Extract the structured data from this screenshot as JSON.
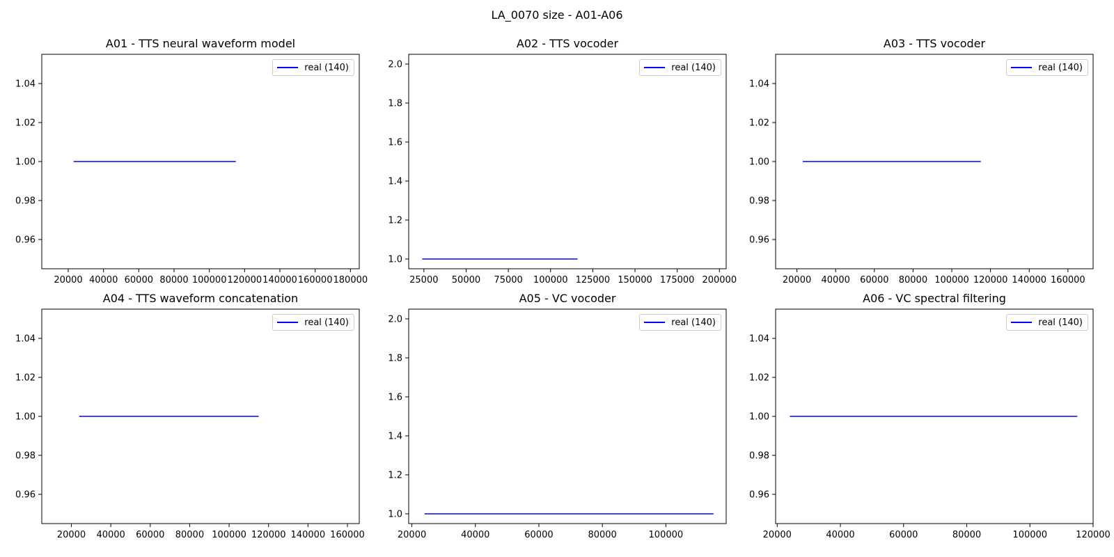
{
  "figure": {
    "title": "LA_0070 size - A01-A06"
  },
  "colors": {
    "series": "#0000ff",
    "axes": "#000000"
  },
  "chart_data": [
    {
      "type": "line",
      "title": "A01 - TTS neural waveform model",
      "xlim": [
        5000,
        185000
      ],
      "ylim": [
        0.945,
        1.055
      ],
      "xticks": [
        20000,
        40000,
        60000,
        80000,
        100000,
        120000,
        140000,
        160000,
        180000
      ],
      "xtick_labels": [
        "20000",
        "40000",
        "60000",
        "80000",
        "100000",
        "120000",
        "140000",
        "160000",
        "180000"
      ],
      "yticks": [
        0.96,
        0.98,
        1.0,
        1.02,
        1.04
      ],
      "ytick_labels": [
        "0.96",
        "0.98",
        "1.00",
        "1.02",
        "1.04"
      ],
      "legend_position": "upper-right",
      "series": [
        {
          "name": "real (140)",
          "x": [
            23000,
            115000
          ],
          "y": [
            1.0,
            1.0
          ]
        }
      ]
    },
    {
      "type": "line",
      "title": "A02 - TTS vocoder",
      "xlim": [
        16000,
        204000
      ],
      "ylim": [
        0.95,
        2.05
      ],
      "xticks": [
        25000,
        50000,
        75000,
        100000,
        125000,
        150000,
        175000,
        200000
      ],
      "xtick_labels": [
        "25000",
        "50000",
        "75000",
        "100000",
        "125000",
        "150000",
        "175000",
        "200000"
      ],
      "yticks": [
        1.0,
        1.2,
        1.4,
        1.6,
        1.8,
        2.0
      ],
      "ytick_labels": [
        "1.0",
        "1.2",
        "1.4",
        "1.6",
        "1.8",
        "2.0"
      ],
      "legend_position": "upper-right",
      "series": [
        {
          "name": "real (140)",
          "x": [
            24000,
            116000
          ],
          "y": [
            1.0,
            1.0
          ]
        }
      ]
    },
    {
      "type": "line",
      "title": "A03 - TTS vocoder",
      "xlim": [
        9000,
        173000
      ],
      "ylim": [
        0.945,
        1.055
      ],
      "xticks": [
        20000,
        40000,
        60000,
        80000,
        100000,
        120000,
        140000,
        160000
      ],
      "xtick_labels": [
        "20000",
        "40000",
        "60000",
        "80000",
        "100000",
        "120000",
        "140000",
        "160000"
      ],
      "yticks": [
        0.96,
        0.98,
        1.0,
        1.02,
        1.04
      ],
      "ytick_labels": [
        "0.96",
        "0.98",
        "1.00",
        "1.02",
        "1.04"
      ],
      "legend_position": "upper-right",
      "series": [
        {
          "name": "real (140)",
          "x": [
            23000,
            115000
          ],
          "y": [
            1.0,
            1.0
          ]
        }
      ]
    },
    {
      "type": "line",
      "title": "A04 - TTS waveform concatenation",
      "xlim": [
        5000,
        166000
      ],
      "ylim": [
        0.945,
        1.055
      ],
      "xticks": [
        20000,
        40000,
        60000,
        80000,
        100000,
        120000,
        140000,
        160000
      ],
      "xtick_labels": [
        "20000",
        "40000",
        "60000",
        "80000",
        "100000",
        "120000",
        "140000",
        "160000"
      ],
      "yticks": [
        0.96,
        0.98,
        1.0,
        1.02,
        1.04
      ],
      "ytick_labels": [
        "0.96",
        "0.98",
        "1.00",
        "1.02",
        "1.04"
      ],
      "legend_position": "upper-right",
      "series": [
        {
          "name": "real (140)",
          "x": [
            24000,
            115000
          ],
          "y": [
            1.0,
            1.0
          ]
        }
      ]
    },
    {
      "type": "line",
      "title": "A05 - VC vocoder",
      "xlim": [
        19000,
        119000
      ],
      "ylim": [
        0.95,
        2.05
      ],
      "xticks": [
        20000,
        40000,
        60000,
        80000,
        100000
      ],
      "xtick_labels": [
        "20000",
        "40000",
        "60000",
        "80000",
        "100000"
      ],
      "yticks": [
        1.0,
        1.2,
        1.4,
        1.6,
        1.8,
        2.0
      ],
      "ytick_labels": [
        "1.0",
        "1.2",
        "1.4",
        "1.6",
        "1.8",
        "2.0"
      ],
      "legend_position": "upper-right",
      "series": [
        {
          "name": "real (140)",
          "x": [
            24000,
            115000
          ],
          "y": [
            1.0,
            1.0
          ]
        }
      ]
    },
    {
      "type": "line",
      "title": "A06 - VC spectral filtering",
      "xlim": [
        19500,
        120000
      ],
      "ylim": [
        0.945,
        1.055
      ],
      "xticks": [
        20000,
        40000,
        60000,
        80000,
        100000,
        120000
      ],
      "xtick_labels": [
        "20000",
        "40000",
        "60000",
        "80000",
        "100000",
        "120000"
      ],
      "yticks": [
        0.96,
        0.98,
        1.0,
        1.02,
        1.04
      ],
      "ytick_labels": [
        "0.96",
        "0.98",
        "1.00",
        "1.02",
        "1.04"
      ],
      "legend_position": "upper-right",
      "series": [
        {
          "name": "real (140)",
          "x": [
            24000,
            115000
          ],
          "y": [
            1.0,
            1.0
          ]
        }
      ]
    }
  ]
}
